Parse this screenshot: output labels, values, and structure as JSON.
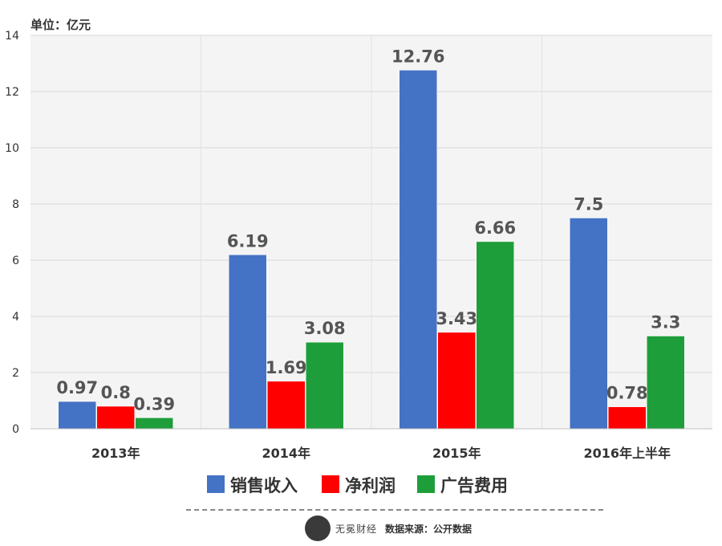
{
  "unit_label": "单位：亿元",
  "footer": {
    "brand": "无冕财经",
    "source": "数据来源：公开数据"
  },
  "chart_data": {
    "type": "bar",
    "title": "",
    "xlabel": "",
    "ylabel": "",
    "ylim": [
      0,
      14
    ],
    "yticks": [
      0,
      2,
      4,
      6,
      8,
      10,
      12,
      14
    ],
    "grid": true,
    "legend_position": "bottom",
    "categories": [
      "2013年",
      "2014年",
      "2015年",
      "2016年上半年"
    ],
    "series": [
      {
        "name": "销售收入",
        "color": "#4472C4",
        "values": [
          0.97,
          6.19,
          12.76,
          7.5
        ],
        "labels": [
          "0.97",
          "6.19",
          "12.76",
          "7.5"
        ]
      },
      {
        "name": "净利润",
        "color": "#FF0000",
        "values": [
          0.8,
          1.69,
          3.43,
          0.78
        ],
        "labels": [
          "0.8",
          "1.69",
          "3.43",
          "0.78"
        ]
      },
      {
        "name": "广告费用",
        "color": "#1E9E3A",
        "values": [
          0.39,
          3.08,
          6.66,
          3.3
        ],
        "labels": [
          "0.39",
          "3.08",
          "6.66",
          "3.3"
        ]
      }
    ]
  }
}
